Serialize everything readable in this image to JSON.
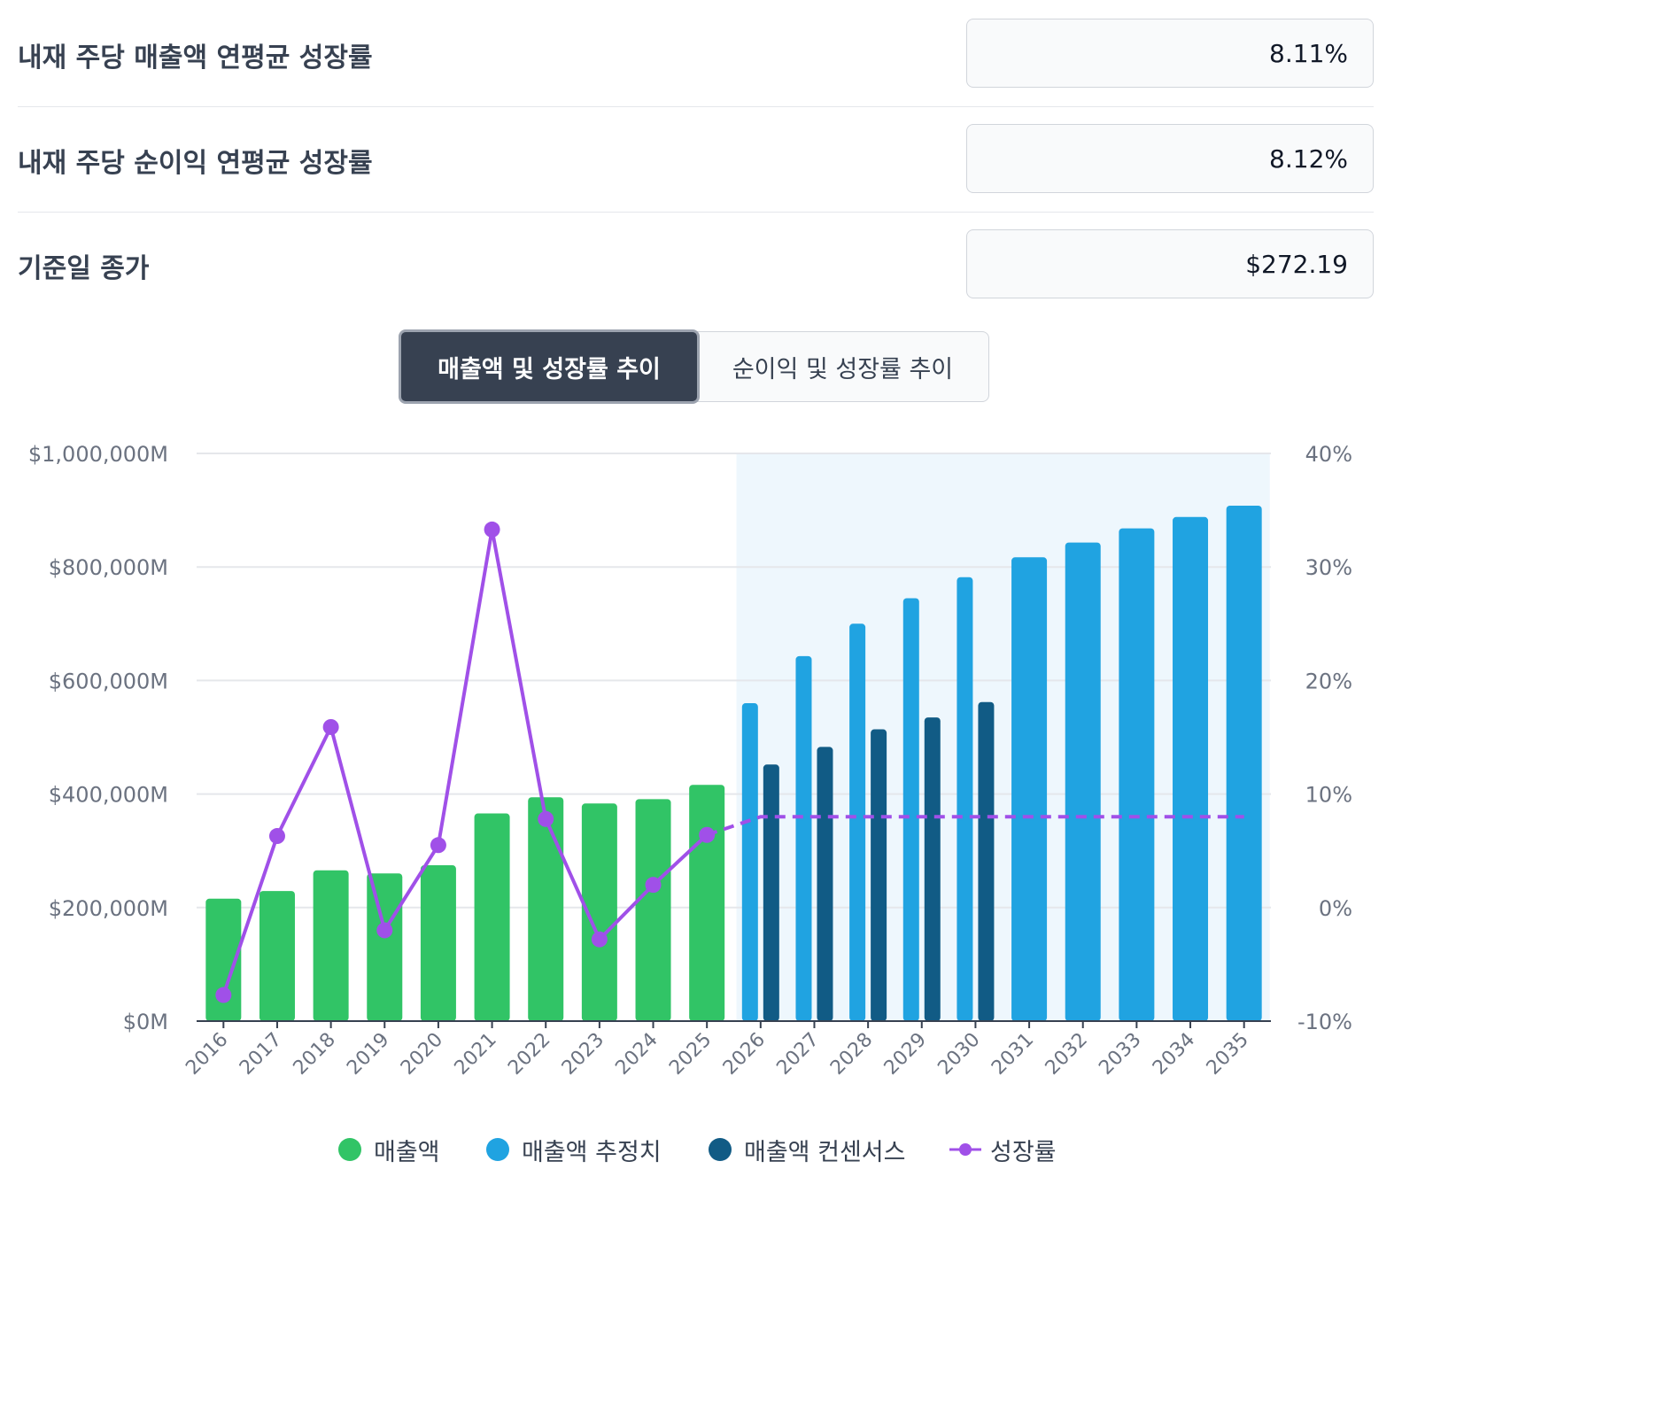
{
  "metrics": [
    {
      "label": "내재 주당 매출액 연평균 성장률",
      "value": "8.11%"
    },
    {
      "label": "내재 주당 순이익 연평균 성장률",
      "value": "8.12%"
    },
    {
      "label": "기준일 종가",
      "value": "$272.19"
    }
  ],
  "tabs": {
    "active": "매출액 및 성장률 추이",
    "inactive": "순이익 및 성장률 추이"
  },
  "colors": {
    "revenue": "#31c466",
    "estimate": "#20a3e1",
    "consensus": "#115b85",
    "growth": "#a050e8",
    "forecast_band": "#eef7fd"
  },
  "chart_data": {
    "type": "bar",
    "categories": [
      "2016",
      "2017",
      "2018",
      "2019",
      "2020",
      "2021",
      "2022",
      "2023",
      "2024",
      "2025",
      "2026",
      "2027",
      "2028",
      "2029",
      "2030",
      "2031",
      "2032",
      "2033",
      "2034",
      "2035"
    ],
    "y_left": {
      "min": 0,
      "max": 1000000,
      "ticks": [
        "$0M",
        "$200,000M",
        "$400,000M",
        "$600,000M",
        "$800,000M",
        "$1,000,000M"
      ],
      "tick_values": [
        0,
        200000,
        400000,
        600000,
        800000,
        1000000
      ]
    },
    "y_right": {
      "min": -10,
      "max": 40,
      "ticks": [
        "-10%",
        "0%",
        "10%",
        "20%",
        "30%",
        "40%"
      ],
      "tick_values": [
        -10,
        0,
        10,
        20,
        30,
        40
      ]
    },
    "forecast_start": "2026",
    "grid": true,
    "legend_position": "bottom",
    "series": [
      {
        "name": "매출액",
        "kind": "bar",
        "axis": "left",
        "values": [
          215600,
          229200,
          265600,
          260200,
          274500,
          365800,
          394300,
          383300,
          391000,
          416200,
          null,
          null,
          null,
          null,
          null,
          null,
          null,
          null,
          null,
          null
        ]
      },
      {
        "name": "매출액 추정치",
        "kind": "bar",
        "axis": "left",
        "values": [
          null,
          null,
          null,
          null,
          null,
          null,
          null,
          null,
          null,
          null,
          560000,
          643000,
          700000,
          745000,
          782000,
          817000,
          843000,
          868000,
          888000,
          908000
        ]
      },
      {
        "name": "매출액 컨센서스",
        "kind": "bar",
        "axis": "left",
        "values": [
          null,
          null,
          null,
          null,
          null,
          null,
          null,
          null,
          null,
          null,
          452000,
          483000,
          514000,
          535000,
          562000,
          null,
          null,
          null,
          null,
          null
        ]
      },
      {
        "name": "성장률",
        "kind": "line",
        "axis": "right",
        "values": [
          -7.7,
          6.3,
          15.9,
          -2.0,
          5.5,
          33.3,
          7.8,
          -2.8,
          2.0,
          6.4,
          8.0,
          8.0,
          8.0,
          8.0,
          8.0,
          8.0,
          8.0,
          8.0,
          8.0,
          8.0
        ],
        "solid_through": "2025"
      }
    ]
  }
}
